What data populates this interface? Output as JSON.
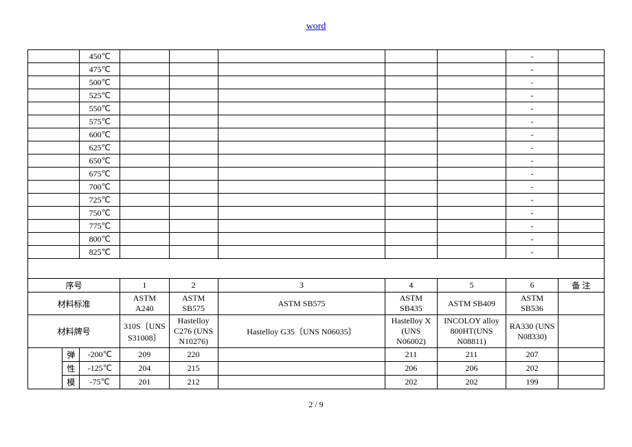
{
  "header_link": "word",
  "page_number": "2 / 9",
  "temp_rows": [
    {
      "t": "450℃",
      "d": "-"
    },
    {
      "t": "475℃",
      "d": "-"
    },
    {
      "t": "500℃",
      "d": "-"
    },
    {
      "t": "525℃",
      "d": "-"
    },
    {
      "t": "550℃",
      "d": "-"
    },
    {
      "t": "575℃",
      "d": "-"
    },
    {
      "t": "600℃",
      "d": "-"
    },
    {
      "t": "625℃",
      "d": "-"
    },
    {
      "t": "650℃",
      "d": "-"
    },
    {
      "t": "675℃",
      "d": "-"
    },
    {
      "t": "700℃",
      "d": "-"
    },
    {
      "t": "725℃",
      "d": "-"
    },
    {
      "t": "750℃",
      "d": "-"
    },
    {
      "t": "775℃",
      "d": "-"
    },
    {
      "t": "800℃",
      "d": "-"
    },
    {
      "t": "825℃",
      "d": "-"
    }
  ],
  "labels": {
    "seq": "序号",
    "std": "材料标准",
    "grade": "材料牌号",
    "remark": "备 注",
    "elastic": "弹",
    "xing": "性",
    "mo": "模"
  },
  "seq_nums": [
    "1",
    "2",
    "3",
    "4",
    "5",
    "6"
  ],
  "stds": [
    "ASTM A240",
    "ASTM SB575",
    "ASTM SB575",
    "ASTM SB435",
    "ASTM SB409",
    "ASTM SB536"
  ],
  "grades": [
    "310S〔UNS S31008〕",
    "Hastelloy C276 (UNS N10276)",
    "Hastelloy G35〔UNS N06035〕",
    "Hastelloy X (UNS N06002)",
    "INCOLOY alloy 800HT(UNS N08811)",
    "RA330 (UNS N08330)"
  ],
  "elastic_rows": [
    {
      "t": "-200℃",
      "v": [
        "209",
        "220",
        "",
        "211",
        "211",
        "207"
      ]
    },
    {
      "t": "-125℃",
      "v": [
        "204",
        "215",
        "",
        "206",
        "206",
        "202"
      ]
    },
    {
      "t": "-75℃",
      "v": [
        "201",
        "212",
        "",
        "202",
        "202",
        "199"
      ]
    }
  ]
}
